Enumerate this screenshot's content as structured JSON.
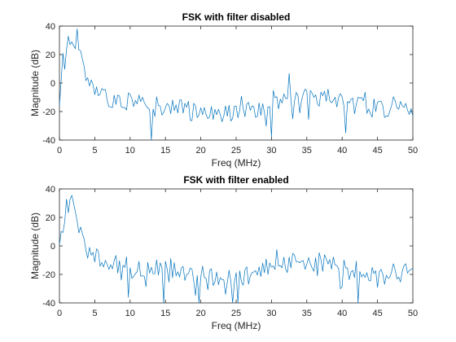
{
  "colors": {
    "line": "#0072BD",
    "axis": "#262626"
  },
  "chart_data": [
    {
      "type": "line",
      "title": "FSK with filter disabled",
      "xlabel": "Freq (MHz)",
      "ylabel": "Magnitude (dB)",
      "xlim": [
        0,
        50
      ],
      "ylim": [
        -40,
        40
      ],
      "xticks": [
        "0",
        "5",
        "10",
        "15",
        "20",
        "25",
        "30",
        "35",
        "40",
        "45",
        "50"
      ],
      "yticks": [
        "-40",
        "-20",
        "0",
        "20",
        "40"
      ],
      "grid": false,
      "series": [
        {
          "x_step": 0.25,
          "approx_envelope": {
            "x": [
              0,
              0.5,
              1,
              1.5,
              2,
              2.5,
              3,
              3.5,
              4,
              5,
              6,
              7,
              8,
              10,
              12,
              14,
              16,
              18,
              20,
              22,
              24,
              26,
              28,
              30,
              32,
              34,
              36,
              38,
              40,
              42,
              44,
              46,
              48,
              50
            ],
            "y": [
              3,
              12,
              25,
              28,
              32,
              30,
              22,
              8,
              0,
              -6,
              -9,
              -11,
              -12,
              -14,
              -15,
              -17,
              -18,
              -19,
              -20,
              -21,
              -21,
              -20,
              -17,
              -12,
              -9,
              -8,
              -9,
              -11,
              -13,
              -15,
              -17,
              -18,
              -19,
              -20
            ]
          }
        }
      ]
    },
    {
      "type": "line",
      "title": "FSK with filter enabled",
      "xlabel": "Freq (MHz)",
      "ylabel": "Magnitude (dB)",
      "xlim": [
        0,
        50
      ],
      "ylim": [
        -40,
        40
      ],
      "xticks": [
        "0",
        "5",
        "10",
        "15",
        "20",
        "25",
        "30",
        "35",
        "40",
        "45",
        "50"
      ],
      "yticks": [
        "-40",
        "-20",
        "0",
        "20",
        "40"
      ],
      "grid": false,
      "series": [
        {
          "x_step": 0.25,
          "approx_envelope": {
            "x": [
              0,
              0.5,
              1,
              1.5,
              2,
              2.5,
              3,
              3.5,
              4,
              5,
              6,
              7,
              8,
              10,
              12,
              14,
              16,
              18,
              20,
              22,
              24,
              26,
              28,
              30,
              32,
              34,
              36,
              38,
              40,
              42,
              44,
              46,
              48,
              50
            ],
            "y": [
              2,
              15,
              28,
              30,
              29,
              20,
              10,
              2,
              -2,
              -8,
              -10,
              -11,
              -12,
              -14,
              -15,
              -17,
              -18,
              -19,
              -21,
              -22,
              -22,
              -21,
              -18,
              -14,
              -12,
              -11,
              -11,
              -12,
              -13,
              -17,
              -20,
              -20,
              -19,
              -18
            ]
          }
        }
      ]
    }
  ]
}
